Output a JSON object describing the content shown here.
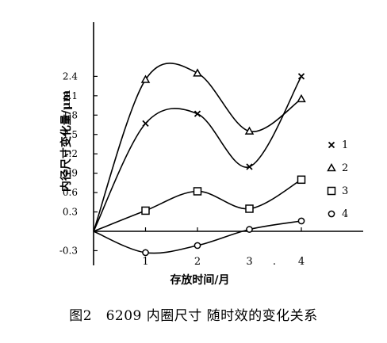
{
  "caption": "图2　6209 内圈尺寸 随时效的变化关系",
  "chart_data": {
    "type": "line",
    "title": "",
    "xlabel": "存放时间/月",
    "ylabel": "内径尺寸变化量/μm",
    "xlim": [
      0,
      4.1
    ],
    "ylim": [
      -0.4,
      2.55
    ],
    "x_ticks": [
      1,
      2,
      3,
      4
    ],
    "x_tick_labels": [
      "1",
      "2",
      "3",
      "4"
    ],
    "y_ticks": [
      -0.3,
      0.3,
      0.6,
      0.9,
      1.2,
      1.5,
      1.8,
      2.1,
      2.4
    ],
    "y_tick_labels": [
      "-0.3",
      "0.3",
      "0.6",
      "0.9",
      "1.2",
      "1.5",
      "1.8",
      "2.1",
      "2.4"
    ],
    "x3_extra_label": ".",
    "grid": false,
    "legend_position": "right",
    "series": [
      {
        "name": "1",
        "marker": "x",
        "x": [
          0,
          1,
          2,
          3,
          4
        ],
        "y": [
          0,
          1.67,
          1.82,
          1.0,
          2.4
        ]
      },
      {
        "name": "2",
        "marker": "triangle",
        "x": [
          0,
          1,
          2,
          3,
          4
        ],
        "y": [
          0,
          2.35,
          2.45,
          1.55,
          2.05
        ]
      },
      {
        "name": "3",
        "marker": "square",
        "x": [
          0,
          1,
          2,
          3,
          4
        ],
        "y": [
          0,
          0.32,
          0.62,
          0.35,
          0.8
        ]
      },
      {
        "name": "4",
        "marker": "circle",
        "x": [
          0,
          1,
          2,
          3,
          4
        ],
        "y": [
          0,
          -0.33,
          -0.22,
          0.03,
          0.16
        ]
      }
    ]
  }
}
